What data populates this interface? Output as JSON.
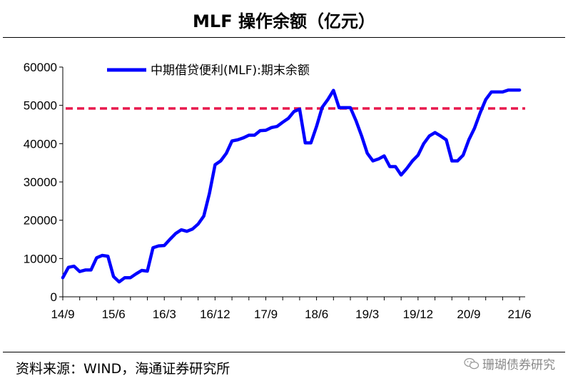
{
  "title": "MLF 操作余额（亿元）",
  "source": "资料来源：WIND，海通证券研究所",
  "watermark": "珊瑚债券研究",
  "watermark_icon": "wechat-icon",
  "chart_data": {
    "type": "line",
    "title": "MLF 操作余额（亿元）",
    "xlabel": "",
    "ylabel": "",
    "ylim": [
      0,
      60000
    ],
    "yticks": [
      0,
      10000,
      20000,
      30000,
      40000,
      50000,
      60000
    ],
    "xticks": [
      "14/9",
      "15/6",
      "16/3",
      "16/12",
      "17/9",
      "18/6",
      "19/3",
      "19/12",
      "20/9",
      "21/6"
    ],
    "x_months": [
      "2014-09",
      "2021-07"
    ],
    "legend": "top-left",
    "grid": false,
    "series": [
      {
        "name": "中期借贷便利(MLF):期末余额",
        "color": "#0000ff",
        "points": [
          [
            "2014-09",
            5000
          ],
          [
            "2014-10",
            7700
          ],
          [
            "2014-11",
            8000
          ],
          [
            "2014-12",
            6600
          ],
          [
            "2015-01",
            7000
          ],
          [
            "2015-02",
            7000
          ],
          [
            "2015-03",
            10200
          ],
          [
            "2015-04",
            10800
          ],
          [
            "2015-05",
            10600
          ],
          [
            "2015-06",
            5300
          ],
          [
            "2015-07",
            3900
          ],
          [
            "2015-08",
            5000
          ],
          [
            "2015-09",
            5000
          ],
          [
            "2015-10",
            6000
          ],
          [
            "2015-11",
            6900
          ],
          [
            "2015-12",
            6700
          ],
          [
            "2016-01",
            12800
          ],
          [
            "2016-02",
            13300
          ],
          [
            "2016-03",
            13400
          ],
          [
            "2016-04",
            15000
          ],
          [
            "2016-05",
            16500
          ],
          [
            "2016-06",
            17500
          ],
          [
            "2016-07",
            17100
          ],
          [
            "2016-08",
            17700
          ],
          [
            "2016-09",
            19000
          ],
          [
            "2016-10",
            21100
          ],
          [
            "2016-11",
            27000
          ],
          [
            "2016-12",
            34500
          ],
          [
            "2017-01",
            35500
          ],
          [
            "2017-02",
            37500
          ],
          [
            "2017-03",
            40700
          ],
          [
            "2017-04",
            41000
          ],
          [
            "2017-05",
            41500
          ],
          [
            "2017-06",
            42200
          ],
          [
            "2017-07",
            42200
          ],
          [
            "2017-08",
            43400
          ],
          [
            "2017-09",
            43500
          ],
          [
            "2017-10",
            44200
          ],
          [
            "2017-11",
            44500
          ],
          [
            "2017-12",
            45600
          ],
          [
            "2018-01",
            46600
          ],
          [
            "2018-02",
            48400
          ],
          [
            "2018-03",
            49000
          ],
          [
            "2018-04",
            40200
          ],
          [
            "2018-05",
            40200
          ],
          [
            "2018-06",
            44500
          ],
          [
            "2018-07",
            49500
          ],
          [
            "2018-08",
            51500
          ],
          [
            "2018-09",
            53900
          ],
          [
            "2018-10",
            49400
          ],
          [
            "2018-11",
            49400
          ],
          [
            "2018-12",
            49400
          ],
          [
            "2019-01",
            46000
          ],
          [
            "2019-02",
            42000
          ],
          [
            "2019-03",
            37500
          ],
          [
            "2019-04",
            35500
          ],
          [
            "2019-05",
            36000
          ],
          [
            "2019-06",
            36800
          ],
          [
            "2019-07",
            34000
          ],
          [
            "2019-08",
            34000
          ],
          [
            "2019-09",
            31800
          ],
          [
            "2019-10",
            33500
          ],
          [
            "2019-11",
            35500
          ],
          [
            "2019-12",
            37000
          ],
          [
            "2020-01",
            40000
          ],
          [
            "2020-02",
            42000
          ],
          [
            "2020-03",
            42900
          ],
          [
            "2020-04",
            42000
          ],
          [
            "2020-05",
            41000
          ],
          [
            "2020-06",
            35500
          ],
          [
            "2020-07",
            35500
          ],
          [
            "2020-08",
            37000
          ],
          [
            "2020-09",
            41000
          ],
          [
            "2020-10",
            44000
          ],
          [
            "2020-11",
            48000
          ],
          [
            "2020-12",
            51500
          ],
          [
            "2021-01",
            53500
          ],
          [
            "2021-02",
            53500
          ],
          [
            "2021-03",
            53500
          ],
          [
            "2021-04",
            54000
          ],
          [
            "2021-05",
            54000
          ],
          [
            "2021-06",
            54000
          ]
        ]
      }
    ],
    "reference_line": {
      "value": 49200,
      "color": "#e8184d",
      "style": "dashed"
    }
  }
}
